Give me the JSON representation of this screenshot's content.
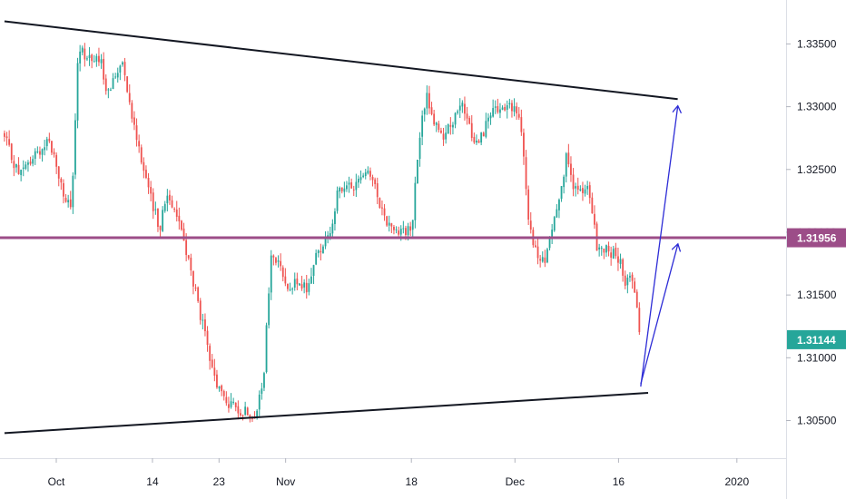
{
  "chart_data": {
    "type": "candlestick",
    "title": "",
    "xlabel": "",
    "ylabel": "",
    "ylim": [
      1.302,
      1.3385
    ],
    "y_ticks": [
      "1.33500",
      "1.33000",
      "1.32500",
      "1.32000",
      "1.31500",
      "1.31000",
      "1.30500"
    ],
    "y_tick_values": [
      1.335,
      1.33,
      1.325,
      1.32,
      1.315,
      1.31,
      1.305
    ],
    "x_ticks": [
      "Oct",
      "14",
      "23",
      "Nov",
      "18",
      "Dec",
      "16",
      "2020"
    ],
    "x_tick_dates": [
      "2019-10-01",
      "2019-10-14",
      "2019-10-23",
      "2019-11-01",
      "2019-11-18",
      "2019-12-02",
      "2019-12-16",
      "2020-01-01"
    ],
    "horizontal_level": {
      "value": 1.31956,
      "label": "1.31956",
      "color": "#9c4d88"
    },
    "last_price": {
      "value": 1.31144,
      "label": "1.31144",
      "color": "#26a69a"
    },
    "colors": {
      "up": "#26a69a",
      "down": "#ef5350",
      "trendline": "#131722",
      "arrow": "#2d2cd6"
    },
    "trendlines": [
      {
        "name": "upper-resistance",
        "start": {
          "date": "2019-09-24",
          "value": 1.3368
        },
        "end": {
          "date": "2019-12-24",
          "value": 1.3306
        }
      },
      {
        "name": "lower-support",
        "start": {
          "date": "2019-09-24",
          "value": 1.304
        },
        "end": {
          "date": "2019-12-20",
          "value": 1.3072
        }
      }
    ],
    "arrows": [
      {
        "name": "projection-arrow-1",
        "start": {
          "date": "2019-12-19",
          "value": 1.3077
        },
        "end": {
          "date": "2019-12-24",
          "value": 1.33
        }
      },
      {
        "name": "projection-arrow-2",
        "start": {
          "date": "2019-12-19",
          "value": 1.3079
        },
        "end": {
          "date": "2019-12-24",
          "value": 1.319
        }
      }
    ],
    "price_path": [
      [
        "2019-09-24",
        1.3275
      ],
      [
        "2019-09-26",
        1.3245
      ],
      [
        "2019-09-30",
        1.3275
      ],
      [
        "2019-10-02",
        1.323
      ],
      [
        "2019-10-03",
        1.3215
      ],
      [
        "2019-10-04",
        1.3345
      ],
      [
        "2019-10-07",
        1.3335
      ],
      [
        "2019-10-08",
        1.331
      ],
      [
        "2019-10-09",
        1.3325
      ],
      [
        "2019-10-10",
        1.334
      ],
      [
        "2019-10-11",
        1.33
      ],
      [
        "2019-10-14",
        1.322
      ],
      [
        "2019-10-15",
        1.3205
      ],
      [
        "2019-10-16",
        1.323
      ],
      [
        "2019-10-17",
        1.322
      ],
      [
        "2019-10-18",
        1.32
      ],
      [
        "2019-10-21",
        1.312
      ],
      [
        "2019-10-22",
        1.309
      ],
      [
        "2019-10-23",
        1.3075
      ],
      [
        "2019-10-24",
        1.3065
      ],
      [
        "2019-10-25",
        1.306
      ],
      [
        "2019-10-28",
        1.3055
      ],
      [
        "2019-10-29",
        1.308
      ],
      [
        "2019-10-30",
        1.318
      ],
      [
        "2019-10-31",
        1.3175
      ],
      [
        "2019-11-01",
        1.316
      ],
      [
        "2019-11-04",
        1.3155
      ],
      [
        "2019-11-05",
        1.318
      ],
      [
        "2019-11-06",
        1.319
      ],
      [
        "2019-11-07",
        1.32
      ],
      [
        "2019-11-08",
        1.323
      ],
      [
        "2019-11-11",
        1.324
      ],
      [
        "2019-11-12",
        1.3255
      ],
      [
        "2019-11-13",
        1.3235
      ],
      [
        "2019-11-14",
        1.322
      ],
      [
        "2019-11-15",
        1.3205
      ],
      [
        "2019-11-18",
        1.32
      ],
      [
        "2019-11-19",
        1.327
      ],
      [
        "2019-11-20",
        1.331
      ],
      [
        "2019-11-21",
        1.329
      ],
      [
        "2019-11-22",
        1.3275
      ],
      [
        "2019-11-25",
        1.33
      ],
      [
        "2019-11-26",
        1.328
      ],
      [
        "2019-11-27",
        1.327
      ],
      [
        "2019-11-28",
        1.3285
      ],
      [
        "2019-11-29",
        1.3295
      ],
      [
        "2019-12-02",
        1.33
      ],
      [
        "2019-12-03",
        1.3275
      ],
      [
        "2019-12-04",
        1.32
      ],
      [
        "2019-12-05",
        1.318
      ],
      [
        "2019-12-06",
        1.3175
      ],
      [
        "2019-12-09",
        1.326
      ],
      [
        "2019-12-10",
        1.3235
      ],
      [
        "2019-12-11",
        1.323
      ],
      [
        "2019-12-12",
        1.3235
      ],
      [
        "2019-12-13",
        1.319
      ],
      [
        "2019-12-16",
        1.318
      ],
      [
        "2019-12-17",
        1.316
      ],
      [
        "2019-12-18",
        1.3165
      ],
      [
        "2019-12-19",
        1.3114
      ]
    ]
  }
}
